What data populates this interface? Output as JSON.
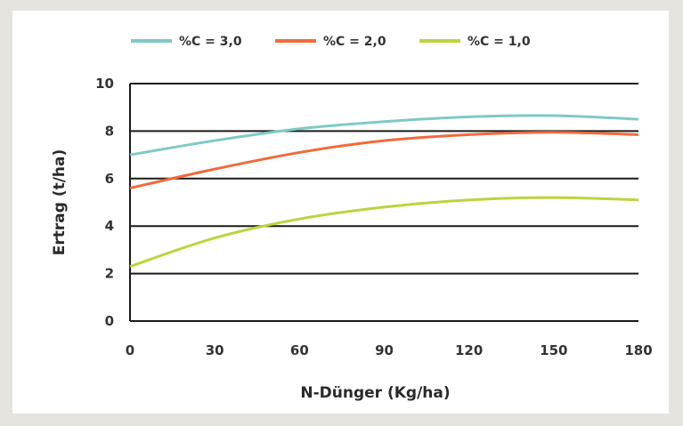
{
  "chart_data": {
    "type": "line",
    "title": "",
    "xlabel": "N-Dünger (Kg/ha)",
    "ylabel": "Ertrag (t/ha)",
    "x": [
      0,
      30,
      60,
      90,
      120,
      150,
      180
    ],
    "xlim": [
      0,
      180
    ],
    "ylim": [
      0,
      10
    ],
    "x_ticks": [
      "0",
      "30",
      "60",
      "90",
      "120",
      "150",
      "180"
    ],
    "y_ticks": [
      "0",
      "2",
      "4",
      "6",
      "8",
      "10"
    ],
    "grid": "horizontal",
    "legend_position": "top",
    "series": [
      {
        "name": "%C = 3,0",
        "color": "#7fc9c6",
        "values": [
          7.0,
          7.6,
          8.1,
          8.4,
          8.6,
          8.65,
          8.5
        ]
      },
      {
        "name": "%C = 2,0",
        "color": "#f26a3b",
        "values": [
          5.6,
          6.4,
          7.1,
          7.6,
          7.85,
          7.95,
          7.85
        ]
      },
      {
        "name": "%C = 1,0",
        "color": "#bcd43e",
        "values": [
          2.3,
          3.5,
          4.3,
          4.8,
          5.1,
          5.2,
          5.1
        ]
      }
    ]
  }
}
